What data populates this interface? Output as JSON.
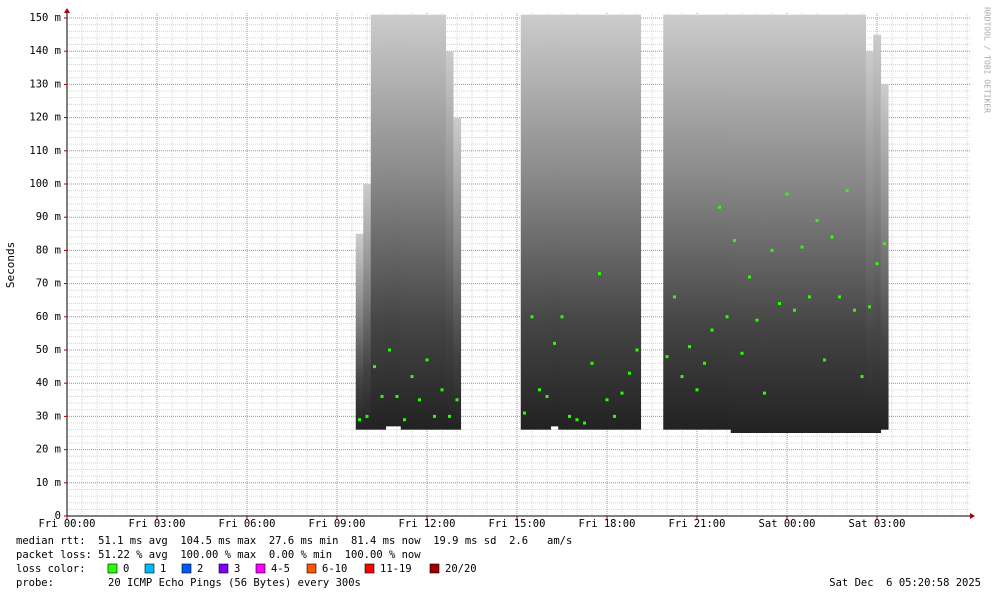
{
  "chart_data": {
    "type": "smoke",
    "y_label": "Seconds",
    "watermark": "RRDTOOL / TOBI OETIKER",
    "xlim": [
      0,
      30.1
    ],
    "xticks": [
      {
        "value": 0,
        "label": "Fri 00:00"
      },
      {
        "value": 3,
        "label": "Fri 03:00"
      },
      {
        "value": 6,
        "label": "Fri 06:00"
      },
      {
        "value": 9,
        "label": "Fri 09:00"
      },
      {
        "value": 12,
        "label": "Fri 12:00"
      },
      {
        "value": 15,
        "label": "Fri 15:00"
      },
      {
        "value": 18,
        "label": "Fri 18:00"
      },
      {
        "value": 21,
        "label": "Fri 21:00"
      },
      {
        "value": 24,
        "label": "Sat 00:00"
      },
      {
        "value": 27,
        "label": "Sat 03:00"
      }
    ],
    "ylim": [
      0,
      0.151
    ],
    "yticks": [
      0,
      {
        "value": 0.01,
        "label": "10 m"
      },
      {
        "value": 0.02,
        "label": "20 m"
      },
      {
        "value": 0.03,
        "label": "30 m"
      },
      {
        "value": 0.04,
        "label": "40 m"
      },
      {
        "value": 0.05,
        "label": "50 m"
      },
      {
        "value": 0.06,
        "label": "60 m"
      },
      {
        "value": 0.07,
        "label": "70 m"
      },
      {
        "value": 0.08,
        "label": "80 m"
      },
      {
        "value": 0.09,
        "label": "90 m"
      },
      {
        "value": 0.1,
        "label": "100 m"
      },
      {
        "value": 0.11,
        "label": "110 m"
      },
      {
        "value": 0.12,
        "label": "120 m"
      },
      {
        "value": 0.13,
        "label": "130 m"
      },
      {
        "value": 0.14,
        "label": "140 m"
      },
      {
        "value": 0.15,
        "label": "150 m"
      }
    ],
    "minor_grid": {
      "x_step": 0.5,
      "y_step": 0.002
    },
    "grid": true,
    "median_color": "#26ff00",
    "x": [
      9.75,
      10,
      10.25,
      10.5,
      10.75,
      11,
      11.25,
      11.5,
      11.75,
      12,
      12.25,
      12.5,
      12.75,
      13,
      14,
      15.25,
      15.5,
      15.75,
      16,
      16.25,
      16.5,
      16.75,
      17,
      17.25,
      17.5,
      17.75,
      18,
      18.25,
      18.5,
      18.75,
      19,
      19.5,
      20,
      20.25,
      20.5,
      20.75,
      21,
      21.25,
      21.5,
      21.75,
      22,
      22.25,
      22.5,
      22.75,
      23,
      23.25,
      23.5,
      23.75,
      24,
      24.25,
      24.5,
      24.75,
      25,
      25.25,
      25.5,
      25.75,
      26,
      26.25,
      26.5,
      26.75,
      27,
      27.25
    ],
    "median": [
      0.029,
      0.03,
      0.045,
      0.036,
      0.05,
      0.036,
      0.029,
      0.042,
      0.035,
      0.047,
      0.03,
      0.038,
      0.03,
      0.035,
      null,
      0.031,
      0.06,
      0.038,
      0.036,
      0.052,
      0.06,
      0.03,
      0.029,
      0.028,
      0.046,
      0.073,
      0.035,
      0.03,
      0.037,
      0.043,
      0.05,
      null,
      0.048,
      0.066,
      0.042,
      0.051,
      0.038,
      0.046,
      0.056,
      0.093,
      0.06,
      0.083,
      0.049,
      0.072,
      0.059,
      0.037,
      0.08,
      0.064,
      0.097,
      0.062,
      0.081,
      0.066,
      0.089,
      0.047,
      0.084,
      0.066,
      0.098,
      0.062,
      0.042,
      0.063,
      0.076,
      0.082
    ],
    "smoke_min": [
      0.026,
      0.026,
      0.026,
      0.026,
      0.027,
      0.027,
      0.026,
      0.026,
      0.026,
      0.026,
      0.026,
      0.026,
      0.026,
      0.026,
      null,
      0.026,
      0.026,
      0.026,
      0.026,
      0.027,
      0.026,
      0.026,
      0.026,
      0.026,
      0.026,
      0.026,
      0.026,
      0.026,
      0.026,
      0.026,
      0.026,
      null,
      0.026,
      0.026,
      0.026,
      0.026,
      0.026,
      0.026,
      0.026,
      0.026,
      0.026,
      0.025,
      0.025,
      0.025,
      0.025,
      0.025,
      0.025,
      0.025,
      0.025,
      0.025,
      0.025,
      0.025,
      0.025,
      0.025,
      0.025,
      0.025,
      0.025,
      0.025,
      0.025,
      0.025,
      0.025,
      0.026
    ],
    "smoke_max": [
      0.085,
      0.1,
      0.151,
      0.151,
      0.151,
      0.151,
      0.151,
      0.151,
      0.151,
      0.151,
      0.151,
      0.151,
      0.14,
      0.12,
      null,
      0.151,
      0.151,
      0.151,
      0.151,
      0.151,
      0.151,
      0.151,
      0.151,
      0.151,
      0.151,
      0.151,
      0.151,
      0.151,
      0.151,
      0.151,
      0.151,
      null,
      0.151,
      0.151,
      0.151,
      0.151,
      0.151,
      0.151,
      0.151,
      0.151,
      0.151,
      0.151,
      0.151,
      0.151,
      0.151,
      0.151,
      0.151,
      0.151,
      0.151,
      0.151,
      0.151,
      0.151,
      0.151,
      0.151,
      0.151,
      0.151,
      0.151,
      0.151,
      0.151,
      0.14,
      0.145,
      0.13
    ],
    "stats": [
      "median rtt:  51.1 ms avg  104.5 ms max  27.6 ms min  81.4 ms now  19.9 ms sd  2.6   am/s",
      "packet loss: 51.22 % avg  100.00 % max  0.00 % min  100.00 % now"
    ],
    "loss_label": "loss color:",
    "loss_colors": [
      {
        "label": "0",
        "color": "#26ff00"
      },
      {
        "label": "1",
        "color": "#00b8ff"
      },
      {
        "label": "2",
        "color": "#0059ff"
      },
      {
        "label": "3",
        "color": "#7e00ff"
      },
      {
        "label": "4-5",
        "color": "#ff00ff"
      },
      {
        "label": "6-10",
        "color": "#ff5500"
      },
      {
        "label": "11-19",
        "color": "#ff0000"
      },
      {
        "label": "20/20",
        "color": "#a10000"
      }
    ],
    "probe_label": "probe:",
    "probe": "20 ICMP Echo Pings (56 Bytes) every 300s",
    "timestamp": "Sat Dec  6 05:20:58 2025"
  }
}
